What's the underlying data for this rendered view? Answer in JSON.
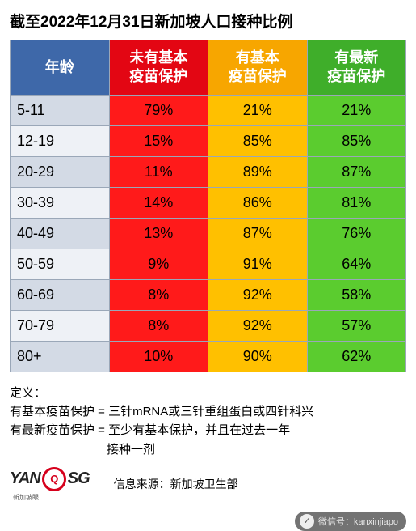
{
  "title": "截至2022年12月31日新加坡人口接种比例",
  "colors": {
    "header_age": "#3e68a9",
    "header_no": "#e30613",
    "header_basic": "#f7a600",
    "header_latest": "#3fae2a",
    "cell_no": "#ff1a1a",
    "cell_basic": "#ffc000",
    "cell_latest": "#5bcc2f",
    "stripe_a": "#d3dae5",
    "stripe_b": "#eef1f6"
  },
  "headers": {
    "age": "年龄",
    "no_protect": "未有基本\n疫苗保护",
    "basic_protect": "有基本\n疫苗保护",
    "latest_protect": "有最新\n疫苗保护"
  },
  "rows": [
    {
      "age": "5-11",
      "no": "79%",
      "basic": "21%",
      "latest": "21%"
    },
    {
      "age": "12-19",
      "no": "15%",
      "basic": "85%",
      "latest": "85%"
    },
    {
      "age": "20-29",
      "no": "11%",
      "basic": "89%",
      "latest": "87%"
    },
    {
      "age": "30-39",
      "no": "14%",
      "basic": "86%",
      "latest": "81%"
    },
    {
      "age": "40-49",
      "no": "13%",
      "basic": "87%",
      "latest": "76%"
    },
    {
      "age": "50-59",
      "no": "9%",
      "basic": "91%",
      "latest": "64%"
    },
    {
      "age": "60-69",
      "no": "8%",
      "basic": "92%",
      "latest": "58%"
    },
    {
      "age": "70-79",
      "no": "8%",
      "basic": "92%",
      "latest": "57%"
    },
    {
      "age": "80+",
      "no": "10%",
      "basic": "90%",
      "latest": "62%"
    }
  ],
  "definitions": {
    "label": "定义：",
    "basic": "有基本疫苗保护 = 三针mRNA或三针重组蛋白或四针科兴",
    "latest_line1": "有最新疫苗保护 = 至少有基本保护，并且在过去一年",
    "latest_line2": "接种一剂"
  },
  "logo": {
    "left": "YAN",
    "ring": "Q",
    "right": "SG",
    "sub": "新加坡眼"
  },
  "source": "信息来源：新加坡卫生部",
  "wechat": "微信号：kanxinjiapo"
}
